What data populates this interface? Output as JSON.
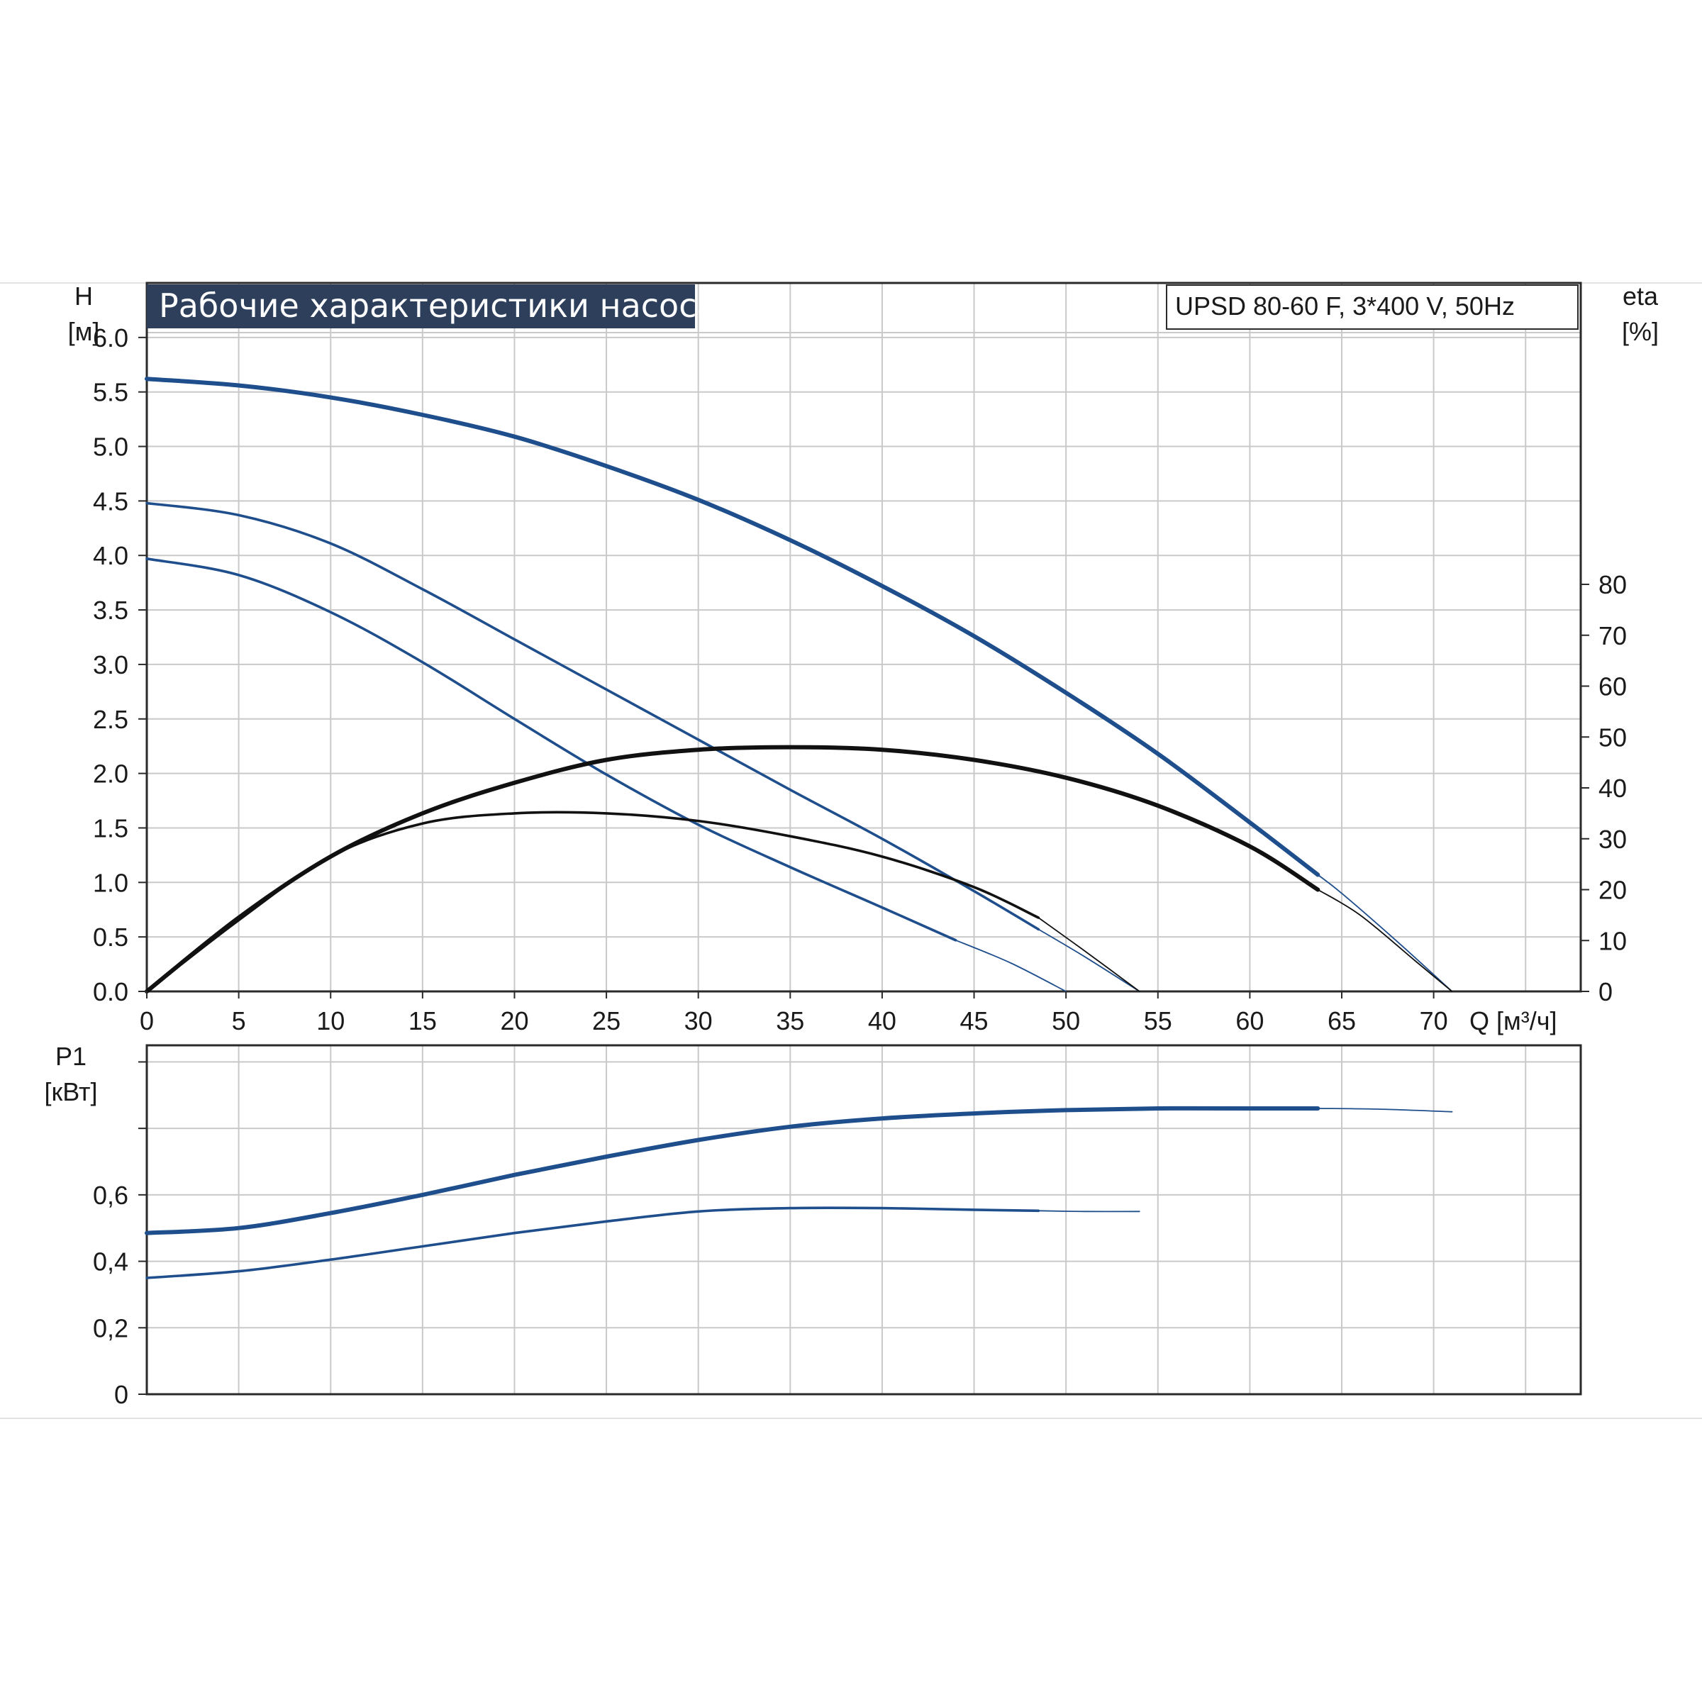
{
  "title": "Рабочие характеристики насоса",
  "model": "UPSD 80-60 F, 3*400 V, 50Hz",
  "colors": {
    "head_curve": "#1f4e8c",
    "efficiency_curve": "#111111",
    "title_bg": "#2e3f5c",
    "grid": "#c9c9c9"
  },
  "chart_data": [
    {
      "type": "line",
      "name": "head-efficiency",
      "x_label": "Q [м³/ч]",
      "x_ticks": [
        "0",
        "5",
        "10",
        "15",
        "20",
        "25",
        "30",
        "35",
        "40",
        "45",
        "50",
        "55",
        "60",
        "65",
        "70"
      ],
      "xlim": [
        0,
        78
      ],
      "y_label_top": "H",
      "y_label_unit": "[м]",
      "y_ticks": [
        "0.0",
        "0.5",
        "1.0",
        "1.5",
        "2.0",
        "2.5",
        "3.0",
        "3.5",
        "4.0",
        "4.5",
        "5.0",
        "5.5",
        "6.0"
      ],
      "ylim": [
        0,
        6.5
      ],
      "y2_label_top": "eta",
      "y2_label_unit": "[%]",
      "y2_ticks": [
        "0",
        "10",
        "20",
        "30",
        "40",
        "50",
        "60",
        "70",
        "80"
      ],
      "y2lim": [
        0,
        80
      ],
      "grid": true,
      "series": [
        {
          "axis": "H",
          "style": "thick",
          "color": "#1f4e8c",
          "x": [
            0,
            5,
            10,
            15,
            20,
            25,
            30,
            35,
            40,
            45,
            50,
            55,
            60,
            63.7
          ],
          "y": [
            5.62,
            5.56,
            5.45,
            5.29,
            5.09,
            4.82,
            4.51,
            4.14,
            3.72,
            3.26,
            2.74,
            2.18,
            1.55,
            1.07
          ]
        },
        {
          "axis": "H",
          "style": "thin",
          "color": "#1f4e8c",
          "x": [
            63.7,
            65,
            68,
            71
          ],
          "y": [
            1.07,
            0.9,
            0.46,
            0.0
          ]
        },
        {
          "axis": "H",
          "style": "normal",
          "color": "#1f4e8c",
          "x": [
            0,
            5,
            10,
            15,
            20,
            25,
            30,
            35,
            40,
            45,
            48.5
          ],
          "y": [
            4.48,
            4.37,
            4.11,
            3.69,
            3.23,
            2.77,
            2.31,
            1.85,
            1.4,
            0.92,
            0.57
          ]
        },
        {
          "axis": "H",
          "style": "thin",
          "color": "#1f4e8c",
          "x": [
            48.5,
            51,
            54
          ],
          "y": [
            0.57,
            0.32,
            0.0
          ]
        },
        {
          "axis": "H",
          "style": "normal",
          "color": "#1f4e8c",
          "x": [
            0,
            5,
            10,
            15,
            20,
            25,
            30,
            35,
            40,
            44
          ],
          "y": [
            3.97,
            3.82,
            3.48,
            3.02,
            2.5,
            1.99,
            1.53,
            1.14,
            0.77,
            0.47
          ]
        },
        {
          "axis": "H",
          "style": "thin",
          "color": "#1f4e8c",
          "x": [
            44,
            47,
            50
          ],
          "y": [
            0.47,
            0.26,
            0.0
          ]
        },
        {
          "axis": "eta",
          "style": "thick",
          "color": "#111111",
          "x": [
            0,
            5,
            10,
            15,
            20,
            25,
            30,
            35,
            40,
            45,
            50,
            55,
            60,
            63.7
          ],
          "y": [
            0,
            14.5,
            26.5,
            35.0,
            41.0,
            45.5,
            47.5,
            48.0,
            47.5,
            45.5,
            42.0,
            36.5,
            28.5,
            20.0
          ]
        },
        {
          "axis": "eta",
          "style": "thin",
          "color": "#111111",
          "x": [
            63.7,
            66,
            69,
            71
          ],
          "y": [
            20.0,
            15.0,
            6.0,
            0.0
          ]
        },
        {
          "axis": "eta",
          "style": "normal",
          "color": "#111111",
          "x": [
            0,
            5,
            10,
            15,
            20,
            25,
            30,
            35,
            40,
            45,
            48.5
          ],
          "y": [
            0,
            14.0,
            26.5,
            33.0,
            35.0,
            35.0,
            33.5,
            30.5,
            26.5,
            20.5,
            14.5
          ]
        },
        {
          "axis": "eta",
          "style": "thin",
          "color": "#111111",
          "x": [
            48.5,
            51,
            54
          ],
          "y": [
            14.5,
            8.0,
            0.0
          ]
        }
      ]
    },
    {
      "type": "line",
      "name": "power",
      "y_label_top": "P1",
      "y_label_unit": "[кВт]",
      "y_ticks": [
        "0",
        "0,2",
        "0,4",
        "0,6"
      ],
      "ylim": [
        0,
        1.05
      ],
      "xlim": [
        0,
        78
      ],
      "grid": true,
      "series": [
        {
          "style": "thick",
          "color": "#1f4e8c",
          "x": [
            0,
            5,
            10,
            15,
            20,
            25,
            30,
            35,
            40,
            45,
            50,
            55,
            60,
            63.7
          ],
          "y": [
            0.485,
            0.5,
            0.545,
            0.6,
            0.66,
            0.715,
            0.765,
            0.805,
            0.83,
            0.845,
            0.855,
            0.86,
            0.86,
            0.86
          ]
        },
        {
          "style": "thin",
          "color": "#1f4e8c",
          "x": [
            63.7,
            67,
            71
          ],
          "y": [
            0.86,
            0.858,
            0.85
          ]
        },
        {
          "style": "normal",
          "color": "#1f4e8c",
          "x": [
            0,
            5,
            10,
            15,
            20,
            25,
            30,
            35,
            40,
            45,
            48.5
          ],
          "y": [
            0.35,
            0.37,
            0.405,
            0.445,
            0.485,
            0.52,
            0.55,
            0.56,
            0.56,
            0.555,
            0.552
          ]
        },
        {
          "style": "thin",
          "color": "#1f4e8c",
          "x": [
            48.5,
            51,
            54
          ],
          "y": [
            0.552,
            0.55,
            0.55
          ]
        }
      ]
    }
  ]
}
